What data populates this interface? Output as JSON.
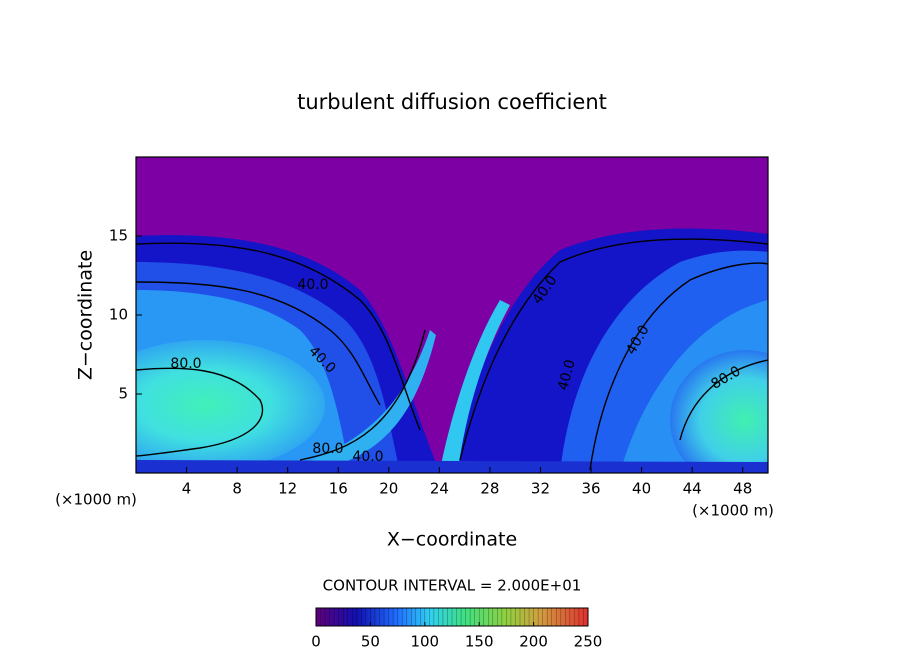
{
  "chart_data": {
    "type": "contour",
    "title": "turbulent diffusion coefficient",
    "x_label": "X−coordinate",
    "y_label": "Z−coordinate",
    "x_unit_left": "(×1000 m)",
    "x_unit_right": "(×1000 m)",
    "xlim": [
      0,
      50
    ],
    "ylim": [
      0,
      20
    ],
    "xticks": [
      4,
      8,
      12,
      16,
      20,
      24,
      28,
      32,
      36,
      40,
      44,
      48
    ],
    "yticks": [
      5,
      10,
      15
    ],
    "contour_labels": [
      "40.0",
      "40.0",
      "80.0",
      "80.0",
      "40.0",
      "40.0",
      "40.0",
      "40.0",
      "80.0"
    ],
    "contour_interval_label": "CONTOUR INTERVAL = 2.000E+01",
    "colorbar": {
      "lim": [
        0,
        250
      ],
      "ticks": [
        0,
        50,
        100,
        150,
        200,
        250
      ]
    }
  }
}
